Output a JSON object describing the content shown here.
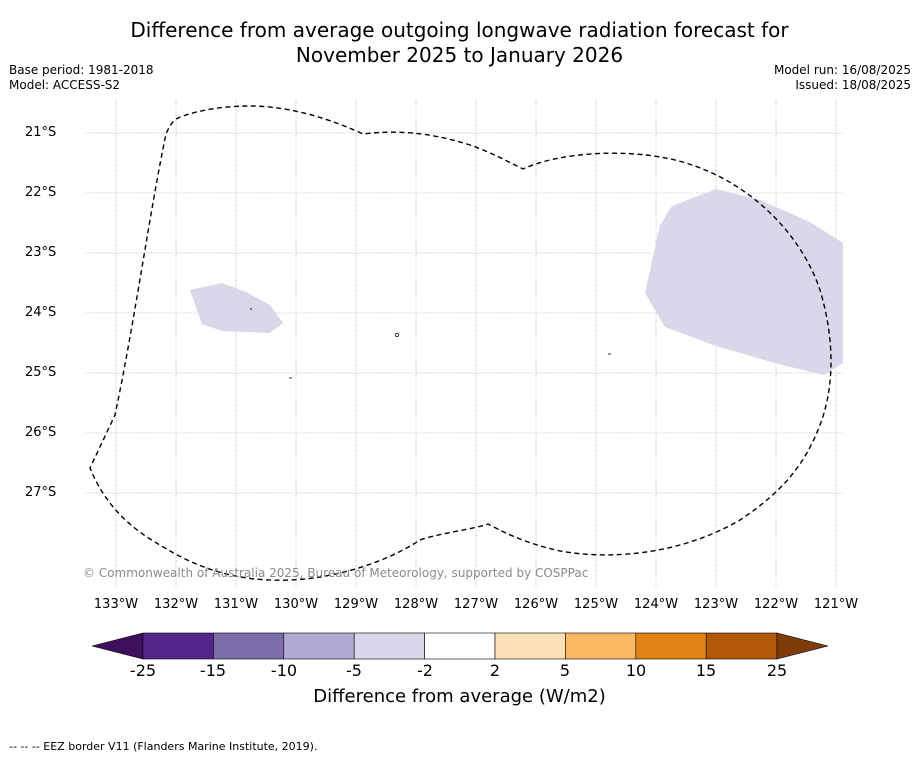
{
  "title_line1": "Difference from average outgoing longwave radiation forecast for",
  "title_line2": "November 2025 to January 2026",
  "base_period": "Base period: 1981-2018",
  "model": "Model: ACCESS-S2",
  "model_run": "Model run: 16/08/2025",
  "issued": "Issued: 18/08/2025",
  "lat_labels": [
    "21°S",
    "22°S",
    "23°S",
    "24°S",
    "25°S",
    "26°S",
    "27°S"
  ],
  "lon_labels": [
    "133°W",
    "132°W",
    "131°W",
    "130°W",
    "129°W",
    "128°W",
    "127°W",
    "126°W",
    "125°W",
    "124°W",
    "123°W",
    "122°W",
    "121°W"
  ],
  "copyright": "© Commonwealth of Australia 2025, Bureau of Meteorology, supported by COSPPac",
  "colorbar": {
    "ticks": [
      "-25",
      "-15",
      "-10",
      "-5",
      "-2",
      "2",
      "5",
      "10",
      "15",
      "25"
    ],
    "colors": [
      "#3f0f5e",
      "#54258a",
      "#7d6daa",
      "#b0aad3",
      "#d8d8ea",
      "#ffffff",
      "#fde0b6",
      "#fdb863",
      "#e08214",
      "#b35806",
      "#7f3b08"
    ],
    "label": "Difference from average (W/m2)"
  },
  "footnote": "--  --  -- EEZ border V11 (Flanders Marine Institute, 2019).",
  "map_colors": {
    "anomaly_fill": "#d8d8ea",
    "eez_border": "#000000",
    "gridline": "#888888"
  }
}
